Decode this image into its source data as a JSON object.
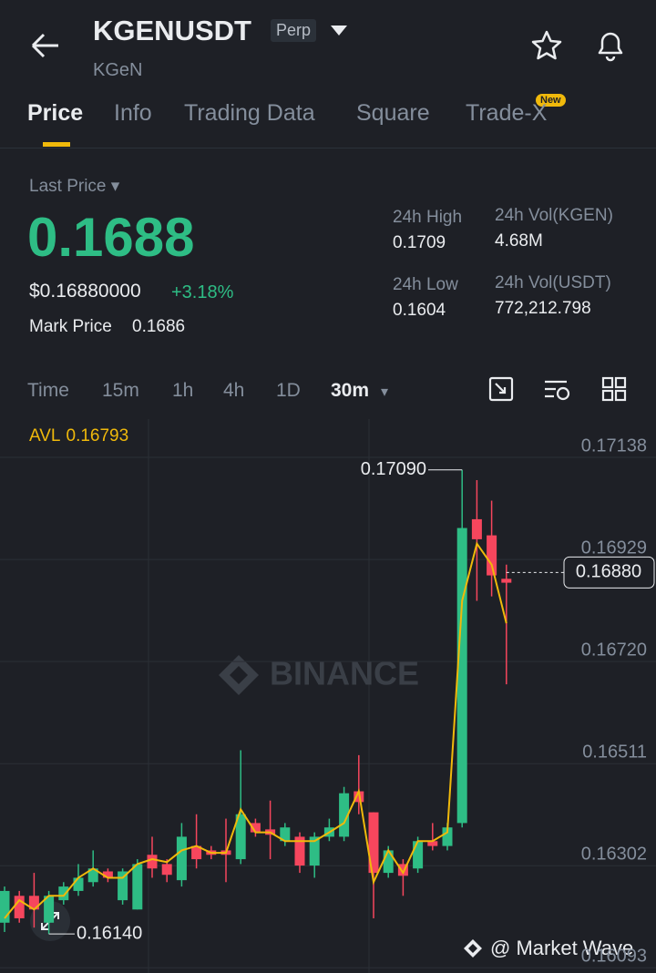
{
  "header": {
    "symbol": "KGENUSDT",
    "badge": "Perp",
    "name": "KGeN"
  },
  "tabs": [
    "Price",
    "Info",
    "Trading Data",
    "Square",
    "Trade-X"
  ],
  "new_badge": "New",
  "price": {
    "last_label": "Last Price",
    "last": "0.1688",
    "usd": "$0.16880000",
    "change": "+3.18%",
    "mark_label": "Mark Price",
    "mark": "0.1686"
  },
  "stats": [
    {
      "label": "24h High",
      "value": "0.1709"
    },
    {
      "label": "24h Vol(KGEN)",
      "value": "4.68M"
    },
    {
      "label": "24h Low",
      "value": "0.1604"
    },
    {
      "label": "24h Vol(USDT)",
      "value": "772,212.798"
    }
  ],
  "timeframes": [
    "Time",
    "15m",
    "1h",
    "4h",
    "1D",
    "30m"
  ],
  "watermark": "BINANCE",
  "credit": "@ Market Wave",
  "chart_data": {
    "type": "candlestick",
    "avl_label": "AVL",
    "avl_value": 0.16793,
    "up_color": "#2ebd85",
    "down_color": "#f6465d",
    "avl_color": "#f0b90b",
    "ylim": [
      0.1606,
      0.17194
    ],
    "yticks": [
      0.17138,
      0.16929,
      {
        "value": 0.1672,
        "label": "0.16720"
      },
      0.16511,
      0.16302,
      0.16093
    ],
    "open": [
      0.16163,
      0.16218,
      0.16218,
      0.16163,
      0.16209,
      0.16228,
      0.16246,
      0.16268,
      0.16209,
      0.1619,
      0.16302,
      0.16283,
      0.1625,
      0.1632,
      0.16311,
      0.16311,
      0.16293,
      0.16367,
      0.16354,
      0.1633,
      0.16339,
      0.1628,
      0.16339,
      0.16339,
      0.16432,
      0.16389,
      0.16265,
      0.16283,
      0.16274,
      0.1633,
      0.1632,
      0.16367,
      0.16989,
      0.16956,
      0.16867
    ],
    "high": [
      0.16237,
      0.16228,
      0.16265,
      0.16228,
      0.16246,
      0.16283,
      0.16311,
      0.16274,
      0.16274,
      0.16293,
      0.16339,
      0.16293,
      0.16367,
      0.16385,
      0.1632,
      0.16376,
      0.16516,
      0.16376,
      0.16413,
      0.16367,
      0.16348,
      0.16348,
      0.16376,
      0.16441,
      0.16506,
      0.16389,
      0.1632,
      0.16293,
      0.16339,
      0.16367,
      0.16367,
      0.1709,
      0.17069,
      0.17027,
      0.16896
    ],
    "low": [
      0.16144,
      0.16163,
      0.16153,
      0.1614,
      0.162,
      0.16218,
      0.16237,
      0.16246,
      0.162,
      0.1619,
      0.16255,
      0.16246,
      0.16237,
      0.16274,
      0.16293,
      0.16246,
      0.16283,
      0.16339,
      0.16293,
      0.1632,
      0.16265,
      0.16255,
      0.1633,
      0.1633,
      0.16385,
      0.16172,
      0.16255,
      0.16218,
      0.16265,
      0.16311,
      0.16311,
      0.16358,
      0.16822,
      0.16831,
      0.16651
    ],
    "close": [
      0.16228,
      0.16172,
      0.1619,
      0.16218,
      0.16237,
      0.16255,
      0.16274,
      0.16255,
      0.16268,
      0.16283,
      0.16274,
      0.16261,
      0.16339,
      0.16293,
      0.16302,
      0.16302,
      0.16385,
      0.16348,
      0.16343,
      0.16358,
      0.1628,
      0.16339,
      0.16358,
      0.16428,
      0.1641,
      0.16265,
      0.16311,
      0.16259,
      0.1633,
      0.1632,
      0.16358,
      0.16971,
      0.16948,
      0.16874,
      0.16859
    ],
    "avl": [
      0.16172,
      0.16209,
      0.1619,
      0.16218,
      0.16218,
      0.16255,
      0.16274,
      0.16255,
      0.16255,
      0.16283,
      0.16293,
      0.16287,
      0.16311,
      0.1632,
      0.16306,
      0.16306,
      0.16395,
      0.16348,
      0.16348,
      0.1633,
      0.1633,
      0.1633,
      0.16348,
      0.16367,
      0.16432,
      0.16246,
      0.16311,
      0.16265,
      0.1633,
      0.1633,
      0.16348,
      0.16822,
      0.16939,
      0.16896,
      0.16776
    ],
    "high_marker": {
      "value": 0.1709,
      "label": "0.17090"
    },
    "low_marker": {
      "value": 0.1614,
      "label": "0.16140"
    },
    "last_marker": {
      "value": 0.1688,
      "label": "0.16880"
    }
  }
}
